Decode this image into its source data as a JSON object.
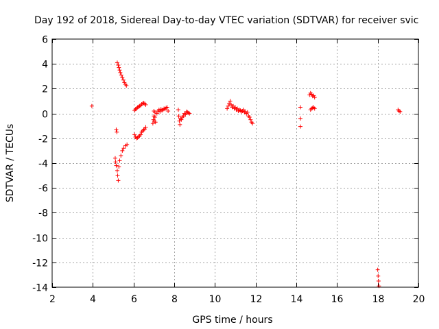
{
  "chart_data": {
    "type": "scatter",
    "title": "Day 192 of 2018, Sidereal Day-to-day VTEC variation (SDTVAR) for receiver svic",
    "xlabel": "GPS time / hours",
    "ylabel": "SDTVAR / TECUs",
    "xlim": [
      2,
      20
    ],
    "ylim": [
      -14,
      6
    ],
    "xticks": [
      2,
      4,
      6,
      8,
      10,
      12,
      14,
      16,
      18,
      20
    ],
    "yticks": [
      -14,
      -12,
      -10,
      -8,
      -6,
      -4,
      -2,
      0,
      2,
      4,
      6
    ],
    "grid": true,
    "marker": "+",
    "color": "#ff0000",
    "series": [
      {
        "name": "SDTVAR",
        "points": [
          [
            3.95,
            0.6
          ],
          [
            5.2,
            4.1
          ],
          [
            5.25,
            3.9
          ],
          [
            5.28,
            3.7
          ],
          [
            5.32,
            3.5
          ],
          [
            5.35,
            3.3
          ],
          [
            5.4,
            3.1
          ],
          [
            5.45,
            2.9
          ],
          [
            5.5,
            2.7
          ],
          [
            5.55,
            2.5
          ],
          [
            5.6,
            2.35
          ],
          [
            5.65,
            2.25
          ],
          [
            5.15,
            -1.3
          ],
          [
            5.18,
            -1.5
          ],
          [
            5.1,
            -3.6
          ],
          [
            5.12,
            -3.9
          ],
          [
            5.15,
            -4.2
          ],
          [
            5.2,
            -4.6
          ],
          [
            5.22,
            -5.0
          ],
          [
            5.25,
            -5.4
          ],
          [
            5.28,
            -4.3
          ],
          [
            5.32,
            -3.8
          ],
          [
            5.38,
            -3.4
          ],
          [
            5.45,
            -3.0
          ],
          [
            5.52,
            -2.8
          ],
          [
            5.6,
            -2.6
          ],
          [
            5.68,
            -2.5
          ],
          [
            6.05,
            0.25
          ],
          [
            6.1,
            0.35
          ],
          [
            6.15,
            0.4
          ],
          [
            6.2,
            0.5
          ],
          [
            6.25,
            0.55
          ],
          [
            6.3,
            0.6
          ],
          [
            6.35,
            0.65
          ],
          [
            6.4,
            0.75
          ],
          [
            6.45,
            0.8
          ],
          [
            6.5,
            0.85
          ],
          [
            6.55,
            0.8
          ],
          [
            6.6,
            0.7
          ],
          [
            6.05,
            -1.7
          ],
          [
            6.1,
            -1.9
          ],
          [
            6.15,
            -2.0
          ],
          [
            6.2,
            -1.95
          ],
          [
            6.25,
            -1.85
          ],
          [
            6.3,
            -1.8
          ],
          [
            6.35,
            -1.7
          ],
          [
            6.4,
            -1.5
          ],
          [
            6.45,
            -1.4
          ],
          [
            6.5,
            -1.3
          ],
          [
            6.55,
            -1.25
          ],
          [
            6.6,
            -1.1
          ],
          [
            6.95,
            -0.8
          ],
          [
            6.98,
            -0.5
          ],
          [
            7.0,
            -0.2
          ],
          [
            7.0,
            0.2
          ],
          [
            7.02,
            -0.6
          ],
          [
            7.05,
            -0.3
          ],
          [
            7.05,
            0.1
          ],
          [
            7.08,
            -0.7
          ],
          [
            7.15,
            0.0
          ],
          [
            7.2,
            0.2
          ],
          [
            7.25,
            0.3
          ],
          [
            7.3,
            0.15
          ],
          [
            7.35,
            0.35
          ],
          [
            7.4,
            0.25
          ],
          [
            7.45,
            0.3
          ],
          [
            7.5,
            0.4
          ],
          [
            7.55,
            0.35
          ],
          [
            7.6,
            0.45
          ],
          [
            7.65,
            0.5
          ],
          [
            7.7,
            0.2
          ],
          [
            8.2,
            0.3
          ],
          [
            8.22,
            -0.2
          ],
          [
            8.25,
            -0.6
          ],
          [
            8.28,
            -0.9
          ],
          [
            8.3,
            -0.4
          ],
          [
            8.35,
            -0.5
          ],
          [
            8.4,
            -0.3
          ],
          [
            8.45,
            -0.2
          ],
          [
            8.5,
            0.0
          ],
          [
            8.55,
            -0.1
          ],
          [
            8.6,
            0.15
          ],
          [
            8.65,
            0.1
          ],
          [
            8.7,
            0.05
          ],
          [
            8.75,
            0.0
          ],
          [
            10.6,
            0.4
          ],
          [
            10.65,
            0.6
          ],
          [
            10.7,
            0.8
          ],
          [
            10.75,
            1.0
          ],
          [
            10.8,
            0.7
          ],
          [
            10.85,
            0.5
          ],
          [
            10.9,
            0.6
          ],
          [
            10.95,
            0.4
          ],
          [
            11.0,
            0.5
          ],
          [
            11.05,
            0.3
          ],
          [
            11.1,
            0.4
          ],
          [
            11.15,
            0.2
          ],
          [
            11.2,
            0.3
          ],
          [
            11.25,
            0.25
          ],
          [
            11.3,
            0.15
          ],
          [
            11.35,
            0.2
          ],
          [
            11.4,
            0.3
          ],
          [
            11.45,
            0.1
          ],
          [
            11.5,
            0.15
          ],
          [
            11.55,
            0.0
          ],
          [
            11.6,
            0.1
          ],
          [
            11.65,
            -0.2
          ],
          [
            11.7,
            -0.3
          ],
          [
            11.75,
            -0.5
          ],
          [
            11.8,
            -0.7
          ],
          [
            11.85,
            -0.8
          ],
          [
            14.2,
            0.5
          ],
          [
            14.2,
            -0.4
          ],
          [
            14.2,
            -1.05
          ],
          [
            14.65,
            1.5
          ],
          [
            14.7,
            1.65
          ],
          [
            14.75,
            1.55
          ],
          [
            14.8,
            1.4
          ],
          [
            14.85,
            1.45
          ],
          [
            14.9,
            1.3
          ],
          [
            14.7,
            0.3
          ],
          [
            14.75,
            0.4
          ],
          [
            14.8,
            0.45
          ],
          [
            14.85,
            0.5
          ],
          [
            14.9,
            0.4
          ],
          [
            18.0,
            -12.6
          ],
          [
            18.02,
            -13.1
          ],
          [
            18.04,
            -13.5
          ],
          [
            18.06,
            -13.9
          ],
          [
            19.0,
            0.3
          ],
          [
            19.05,
            0.2
          ],
          [
            19.1,
            0.15
          ]
        ]
      }
    ]
  }
}
